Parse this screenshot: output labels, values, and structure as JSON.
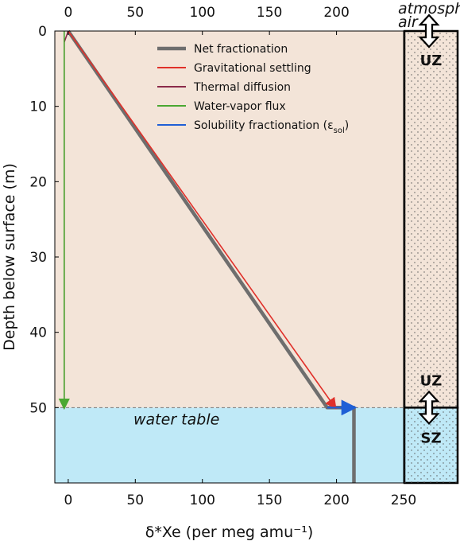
{
  "colors": {
    "net": "#6e6e6e",
    "gravitational": "#e0302a",
    "thermal": "#8b2a4a",
    "water_vapor": "#4aa832",
    "solubility": "#1f5fd6",
    "unsaturated_bg": "#f3e4d8",
    "saturated_bg": "#bfe9f7"
  },
  "chart_data": {
    "type": "line",
    "xlabel": "δ*Xe (per meg amu⁻¹)",
    "ylabel": "Depth below surface (m)",
    "xlim": [
      -10,
      250
    ],
    "ylim": [
      60,
      0
    ],
    "x_ticks": [
      0,
      50,
      100,
      150,
      200,
      250
    ],
    "x_ticks_top": [
      0,
      50,
      100,
      150,
      200
    ],
    "y_ticks": [
      0,
      10,
      20,
      30,
      40,
      50
    ],
    "grid": false,
    "legend_position": "top-right",
    "series": [
      {
        "name": "Net fractionation",
        "key": "net",
        "points": [
          [
            0,
            0
          ],
          [
            193,
            50
          ],
          [
            213,
            50
          ],
          [
            213,
            60
          ]
        ]
      },
      {
        "name": "Gravitational settling",
        "key": "gravitational",
        "points": [
          [
            0,
            0
          ],
          [
            199,
            50
          ]
        ]
      },
      {
        "name": "Thermal diffusion",
        "key": "thermal",
        "points": [
          [
            0,
            0
          ],
          [
            -3,
            1.5
          ],
          [
            -3,
            50
          ]
        ]
      },
      {
        "name": "Water-vapor flux",
        "key": "water_vapor",
        "points": [
          [
            -3,
            0
          ],
          [
            -3,
            50
          ]
        ]
      },
      {
        "name": "Solubility fractionation (ε",
        "name_sub": "sol",
        "name_suffix": ")",
        "key": "solubility",
        "points": [
          [
            193,
            50
          ],
          [
            213,
            50
          ]
        ]
      }
    ],
    "water_table_depth": 50,
    "annotations": {
      "water_table": "water table",
      "atmospheric_air_line1": "atmospheric",
      "atmospheric_air_line2": "air",
      "uz_top": "UZ",
      "uz_bottom": "UZ",
      "sz": "SZ"
    }
  }
}
